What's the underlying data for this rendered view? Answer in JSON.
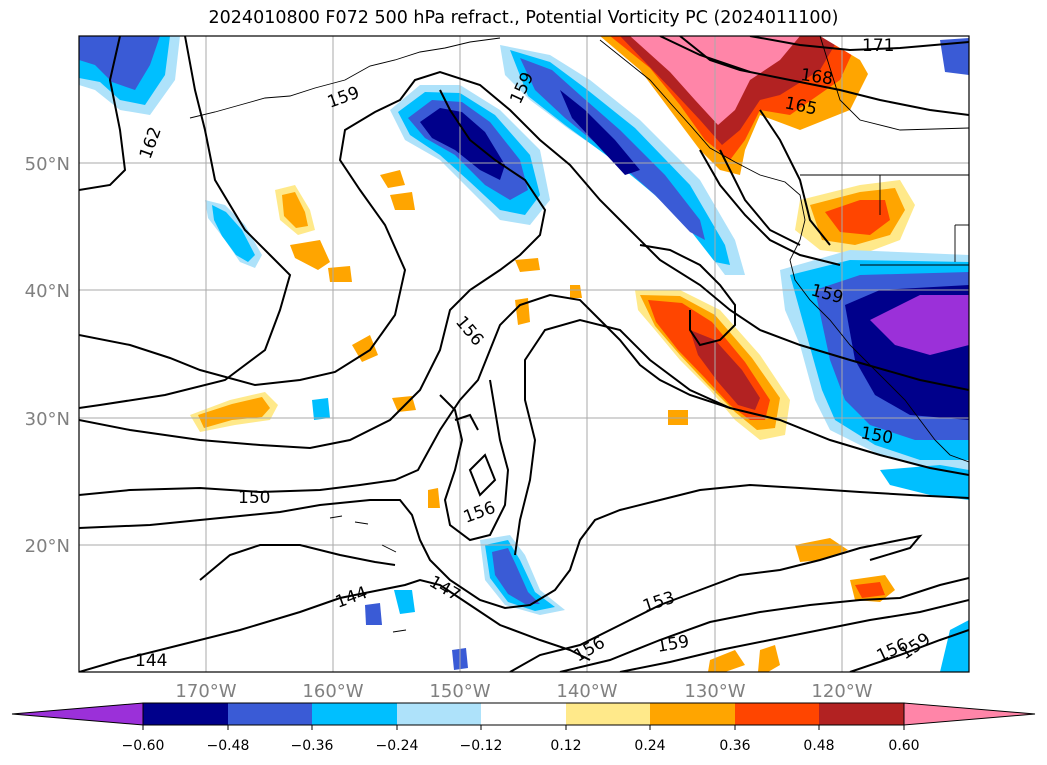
{
  "title": "2024010800 F072 500 hPa refract., Potential Vorticity PC (2024011100)",
  "lat_labels": [
    "50°N",
    "40°N",
    "30°N",
    "20°N"
  ],
  "lon_labels": [
    "170°W",
    "160°W",
    "150°W",
    "140°W",
    "130°W",
    "120°W"
  ],
  "contour_labels": [
    "171",
    "168",
    "165",
    "162",
    "159",
    "159",
    "156",
    "159",
    "150",
    "150",
    "147",
    "144",
    "144",
    "153",
    "156",
    "159",
    "156",
    "159"
  ],
  "colorbar": {
    "ticks": [
      "−0.60",
      "−0.48",
      "−0.36",
      "−0.24",
      "−0.12",
      "0.12",
      "0.24",
      "0.36",
      "0.48",
      "0.60"
    ],
    "colors": [
      "#9b30d9",
      "#00008b",
      "#3a5bd6",
      "#00bfff",
      "#aee2fa",
      "#ffffff",
      "#ffe98a",
      "#ffa500",
      "#ff4500",
      "#b22222",
      "#ff85a8"
    ]
  },
  "colors": {
    "grid": "#aaaaaa",
    "axis_label": "#808080",
    "contour": "#000000"
  }
}
